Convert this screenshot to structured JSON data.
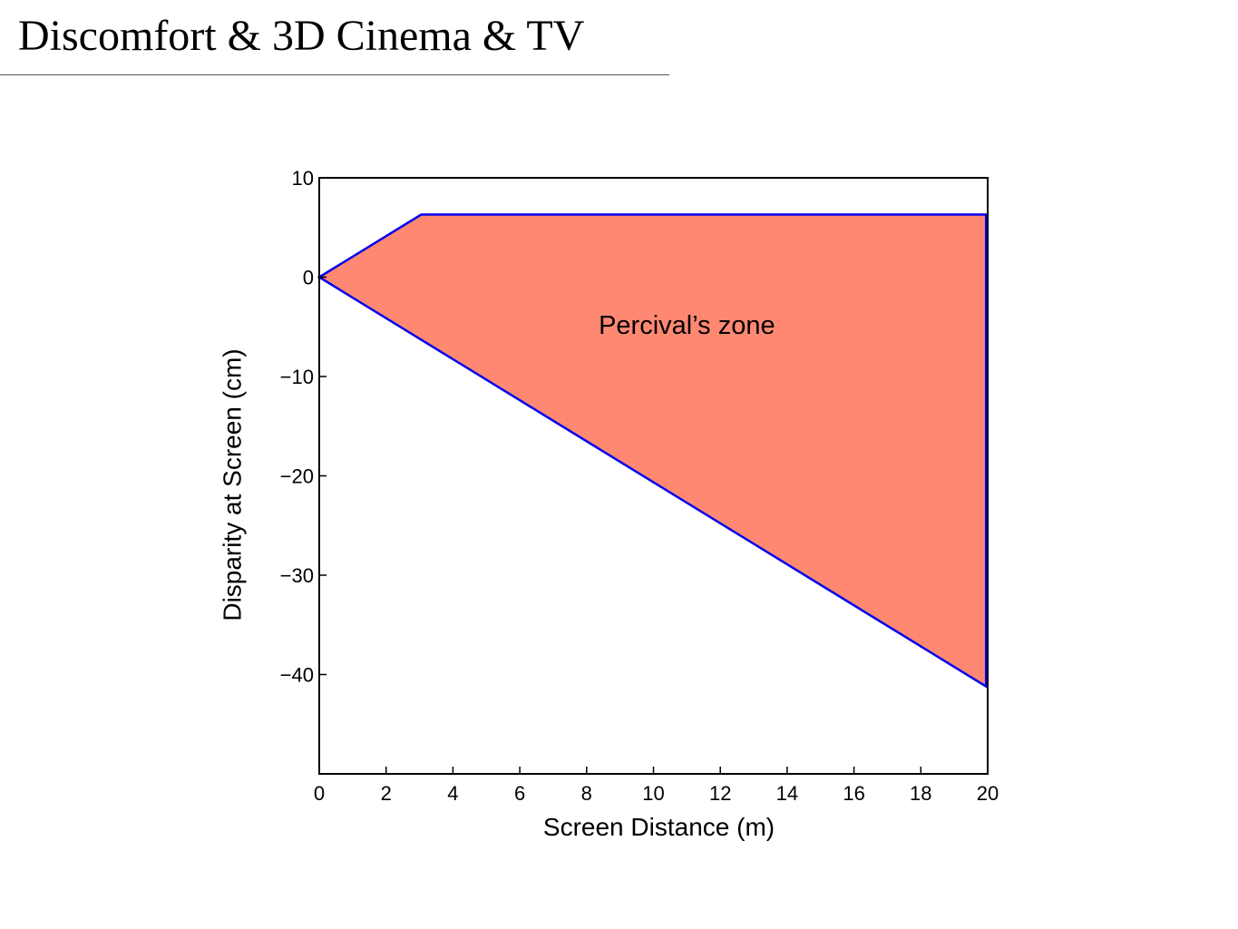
{
  "slide": {
    "title": "Discomfort & 3D Cinema & TV"
  },
  "colors": {
    "fill": "#FF8873",
    "outline": "#0000EE",
    "axis": "#000000"
  },
  "chart_data": {
    "type": "area",
    "xlabel": "Screen Distance (m)",
    "ylabel": "Disparity at Screen (cm)",
    "xlim": [
      0,
      20
    ],
    "ylim": [
      -50,
      10
    ],
    "xticks": [
      0,
      2,
      4,
      6,
      8,
      10,
      12,
      14,
      16,
      18,
      20
    ],
    "yticks": [
      10,
      0,
      -10,
      -20,
      -30,
      -40
    ],
    "ytick_labels": [
      "10",
      "0",
      "−10",
      "−20",
      "−30",
      "−40"
    ],
    "grid": false,
    "series": [
      {
        "name": "Percival’s zone",
        "region": [
          {
            "x": 0,
            "y": 0
          },
          {
            "x": 3.05,
            "y": 6.3
          },
          {
            "x": 19.95,
            "y": 6.3
          },
          {
            "x": 19.95,
            "y": -41.2
          },
          {
            "x": 0,
            "y": 0
          }
        ]
      }
    ],
    "annotations": [
      {
        "text": "Percival’s zone",
        "x": 11,
        "y": -5
      }
    ]
  }
}
